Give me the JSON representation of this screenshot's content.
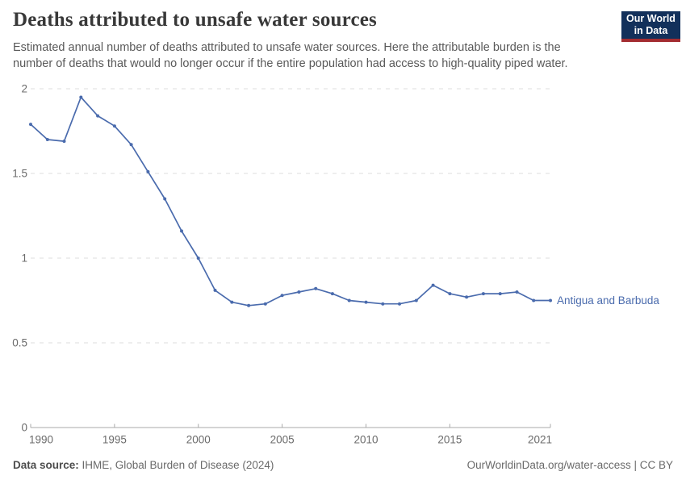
{
  "header": {
    "title": "Deaths attributed to unsafe water sources",
    "subtitle": "Estimated annual number of deaths attributed to unsafe water sources. Here the attributable burden is the number of deaths that would no longer occur if the entire population had access to high-quality piped water.",
    "logo": {
      "line1": "Our World",
      "line2": "in Data"
    }
  },
  "footer": {
    "source_label": "Data source:",
    "source_text": " IHME, Global Burden of Disease (2024)",
    "link_text": "OurWorldinData.org/water-access | CC BY"
  },
  "colors": {
    "series": "#4a6bad",
    "grid": "#dedede",
    "axis": "#a9a9a9",
    "tick_label": "#6b6b6b",
    "logo_bg": "#12305b",
    "logo_bar": "#a32c31"
  },
  "chart_data": {
    "type": "line",
    "title": "Deaths attributed to unsafe water sources",
    "xlabel": "",
    "ylabel": "",
    "xlim": [
      1990,
      2021
    ],
    "ylim": [
      0,
      2
    ],
    "grid": "horizontal-dashed",
    "legend_position": "end-of-line",
    "x_ticks": [
      "1990",
      "1995",
      "2000",
      "2005",
      "2010",
      "2015",
      "2021"
    ],
    "y_ticks": [
      "0",
      "0.5",
      "1",
      "1.5",
      "2"
    ],
    "x": [
      1990,
      1991,
      1992,
      1993,
      1994,
      1995,
      1996,
      1997,
      1998,
      1999,
      2000,
      2001,
      2002,
      2003,
      2004,
      2005,
      2006,
      2007,
      2008,
      2009,
      2010,
      2011,
      2012,
      2013,
      2014,
      2015,
      2016,
      2017,
      2018,
      2019,
      2020,
      2021
    ],
    "series": [
      {
        "name": "Antigua and Barbuda",
        "color": "#4a6bad",
        "values": [
          1.79,
          1.7,
          1.69,
          1.95,
          1.84,
          1.78,
          1.67,
          1.51,
          1.35,
          1.16,
          1.0,
          0.81,
          0.74,
          0.72,
          0.73,
          0.78,
          0.8,
          0.82,
          0.79,
          0.75,
          0.74,
          0.73,
          0.73,
          0.75,
          0.84,
          0.79,
          0.77,
          0.79,
          0.79,
          0.8,
          0.75,
          0.75
        ]
      }
    ]
  }
}
